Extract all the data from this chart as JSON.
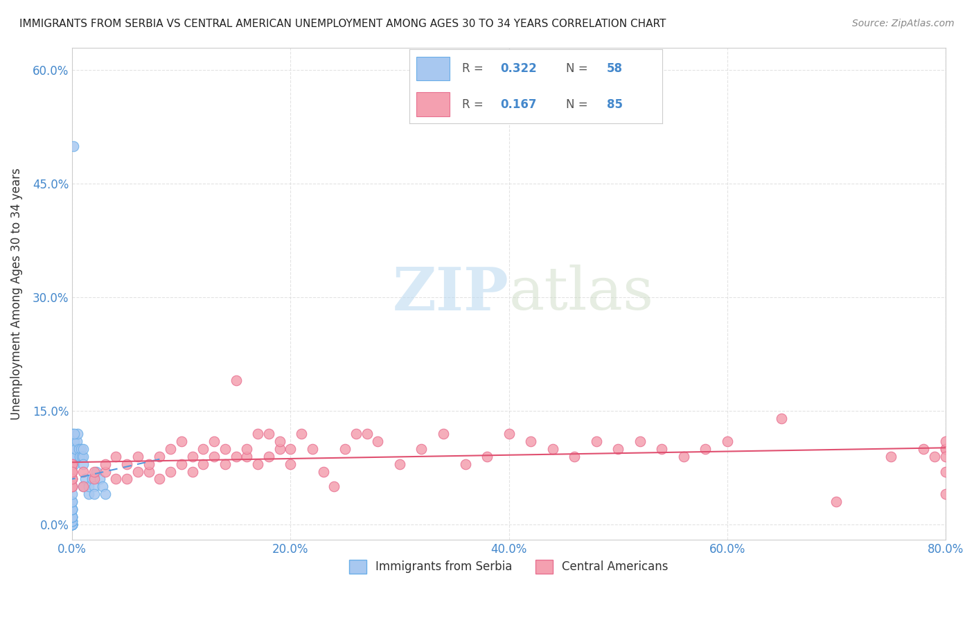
{
  "title": "IMMIGRANTS FROM SERBIA VS CENTRAL AMERICAN UNEMPLOYMENT AMONG AGES 30 TO 34 YEARS CORRELATION CHART",
  "source": "Source: ZipAtlas.com",
  "ylabel": "Unemployment Among Ages 30 to 34 years",
  "xlim": [
    0,
    0.8
  ],
  "ylim": [
    -0.02,
    0.63
  ],
  "xticks": [
    0.0,
    0.2,
    0.4,
    0.6,
    0.8
  ],
  "yticks": [
    0.0,
    0.15,
    0.3,
    0.45,
    0.6
  ],
  "xtick_labels": [
    "0.0%",
    "20.0%",
    "40.0%",
    "60.0%",
    "80.0%"
  ],
  "ytick_labels": [
    "0.0%",
    "15.0%",
    "30.0%",
    "45.0%",
    "60.0%"
  ],
  "serbia_color": "#a8c8f0",
  "serbia_edge_color": "#6aaee8",
  "central_color": "#f4a0b0",
  "central_edge_color": "#e87090",
  "serbia_trend_color": "#5599dd",
  "central_trend_color": "#e05070",
  "grid_color": "#dddddd",
  "watermark_zip": "ZIP",
  "watermark_atlas": "atlas",
  "serbia_x": [
    0.0,
    0.0,
    0.0,
    0.0,
    0.0,
    0.0,
    0.0,
    0.0,
    0.0,
    0.0,
    0.0,
    0.0,
    0.0,
    0.0,
    0.0,
    0.0,
    0.0,
    0.0,
    0.0,
    0.0,
    0.0,
    0.0,
    0.0,
    0.0,
    0.0,
    0.0,
    0.0,
    0.0,
    0.001,
    0.001,
    0.001,
    0.002,
    0.002,
    0.002,
    0.003,
    0.003,
    0.004,
    0.005,
    0.006,
    0.007,
    0.008,
    0.009,
    0.01,
    0.01,
    0.01,
    0.01,
    0.012,
    0.015,
    0.015,
    0.018,
    0.02,
    0.02,
    0.022,
    0.025,
    0.028,
    0.03,
    0.001,
    0.002
  ],
  "serbia_y": [
    0.0,
    0.0,
    0.0,
    0.0,
    0.0,
    0.0,
    0.0,
    0.0,
    0.005,
    0.005,
    0.005,
    0.01,
    0.01,
    0.01,
    0.01,
    0.02,
    0.02,
    0.02,
    0.02,
    0.03,
    0.03,
    0.04,
    0.05,
    0.06,
    0.08,
    0.09,
    0.1,
    0.12,
    0.1,
    0.11,
    0.09,
    0.1,
    0.11,
    0.08,
    0.09,
    0.1,
    0.11,
    0.12,
    0.1,
    0.09,
    0.1,
    0.09,
    0.09,
    0.1,
    0.08,
    0.05,
    0.06,
    0.04,
    0.05,
    0.06,
    0.05,
    0.04,
    0.07,
    0.06,
    0.05,
    0.04,
    0.5,
    0.12
  ],
  "central_x": [
    0.0,
    0.0,
    0.0,
    0.0,
    0.0,
    0.0,
    0.0,
    0.0,
    0.0,
    0.0,
    0.01,
    0.01,
    0.02,
    0.02,
    0.03,
    0.03,
    0.04,
    0.04,
    0.05,
    0.05,
    0.06,
    0.06,
    0.07,
    0.07,
    0.08,
    0.08,
    0.09,
    0.09,
    0.1,
    0.1,
    0.11,
    0.11,
    0.12,
    0.12,
    0.13,
    0.13,
    0.14,
    0.14,
    0.15,
    0.15,
    0.16,
    0.16,
    0.17,
    0.17,
    0.18,
    0.18,
    0.19,
    0.19,
    0.2,
    0.2,
    0.21,
    0.22,
    0.23,
    0.24,
    0.25,
    0.26,
    0.27,
    0.28,
    0.3,
    0.32,
    0.34,
    0.36,
    0.38,
    0.4,
    0.42,
    0.44,
    0.46,
    0.48,
    0.5,
    0.52,
    0.54,
    0.56,
    0.58,
    0.6,
    0.65,
    0.7,
    0.75,
    0.78,
    0.79,
    0.8,
    0.8,
    0.8,
    0.8,
    0.8,
    0.8
  ],
  "central_y": [
    0.05,
    0.06,
    0.06,
    0.07,
    0.07,
    0.08,
    0.08,
    0.05,
    0.06,
    0.07,
    0.05,
    0.07,
    0.06,
    0.07,
    0.07,
    0.08,
    0.06,
    0.09,
    0.06,
    0.08,
    0.07,
    0.09,
    0.07,
    0.08,
    0.06,
    0.09,
    0.07,
    0.1,
    0.08,
    0.11,
    0.07,
    0.09,
    0.08,
    0.1,
    0.09,
    0.11,
    0.08,
    0.1,
    0.19,
    0.09,
    0.09,
    0.1,
    0.08,
    0.12,
    0.09,
    0.12,
    0.1,
    0.11,
    0.08,
    0.1,
    0.12,
    0.1,
    0.07,
    0.05,
    0.1,
    0.12,
    0.12,
    0.11,
    0.08,
    0.1,
    0.12,
    0.08,
    0.09,
    0.12,
    0.11,
    0.1,
    0.09,
    0.11,
    0.1,
    0.11,
    0.1,
    0.09,
    0.1,
    0.11,
    0.14,
    0.03,
    0.09,
    0.1,
    0.09,
    0.1,
    0.1,
    0.11,
    0.09,
    0.04,
    0.07
  ]
}
